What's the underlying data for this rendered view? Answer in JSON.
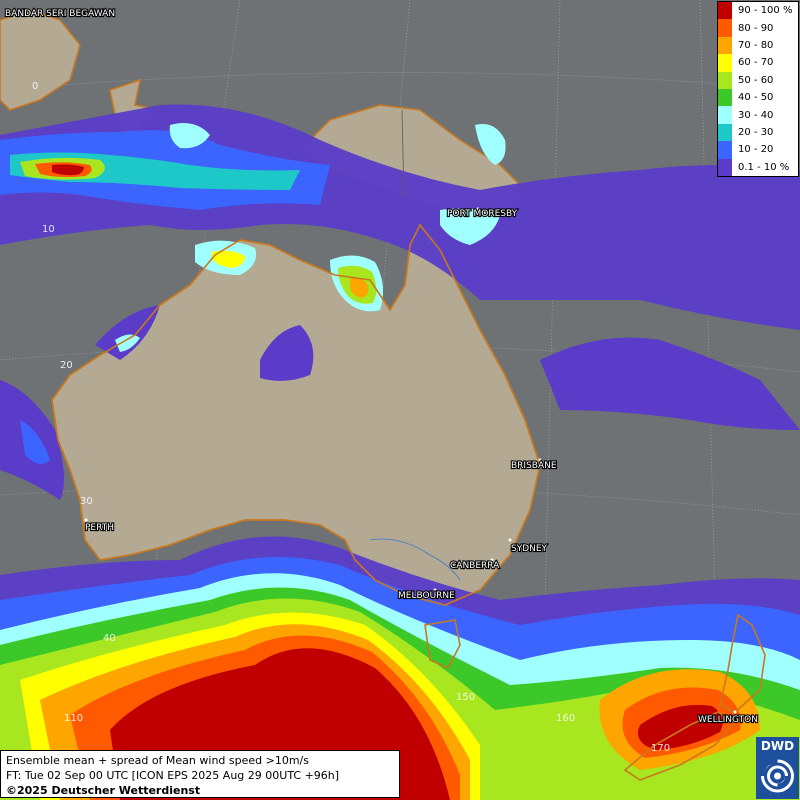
{
  "legend": {
    "items": [
      {
        "label": "90 - 100 %",
        "color": "#c00000"
      },
      {
        "label": "80 - 90",
        "color": "#ff5a00"
      },
      {
        "label": "70 - 80",
        "color": "#ffa500"
      },
      {
        "label": "60 - 70",
        "color": "#ffff00"
      },
      {
        "label": "50 - 60",
        "color": "#a8e620"
      },
      {
        "label": "40 - 50",
        "color": "#3cc828"
      },
      {
        "label": "30 - 40",
        "color": "#a0ffff"
      },
      {
        "label": "20 - 30",
        "color": "#1ec8c8"
      },
      {
        "label": "10 - 20",
        "color": "#3c64ff"
      },
      {
        "label": "0.1 - 10 %",
        "color": "#5a3cc8"
      }
    ]
  },
  "cities": {
    "bandar": "BANDAR SERI BEGAWAN",
    "port_moresby": "PORT MORESBY",
    "brisbane": "BRISBANE",
    "perth": "PERTH",
    "sydney": "SYDNEY",
    "canberra": "CANBERRA",
    "melbourne": "MELBOURNE",
    "wellington": "WELLINGTON"
  },
  "grid_labels": {
    "lat0": "0",
    "lat10": "10",
    "lat20": "20",
    "lat30": "30",
    "lat40": "40",
    "lon110": "110",
    "lon150": "150",
    "lon160": "160",
    "lon170": "170"
  },
  "info": {
    "line1": "Ensemble mean + spread of Mean wind speed >10m/s",
    "line2": "FT: Tue 02 Sep 00 UTC [ICON EPS 2025 Aug 29 00UTC +96h]",
    "copyright": "©2025 Deutscher Wetterdienst"
  },
  "logo": {
    "text": "DWD"
  },
  "colors": {
    "ocean": "#6e7275",
    "land": "#b4aa94",
    "coast": "#c8781e",
    "band_90": "#c00000",
    "band_80": "#ff5a00",
    "band_70": "#ffa500",
    "band_60": "#ffff00",
    "band_50": "#a8e620",
    "band_40": "#3cc828",
    "band_30": "#a0ffff",
    "band_20": "#1ec8c8",
    "band_10": "#3c64ff",
    "band_0": "#5a3cc8"
  }
}
